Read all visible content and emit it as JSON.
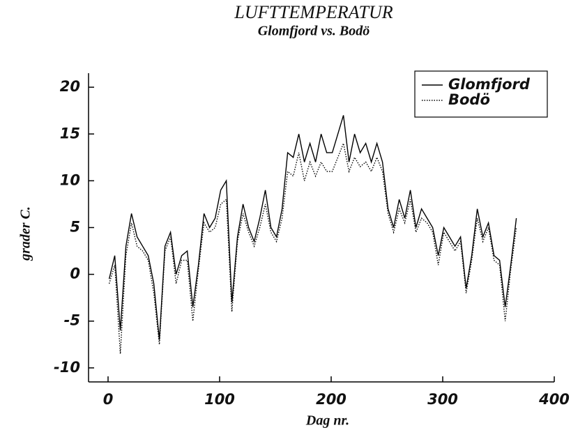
{
  "chart_data": {
    "type": "line",
    "title": "LUFTTEMPERATUR",
    "subtitle": "Glomfjord vs. Bodö",
    "x_label": "Dag nr.",
    "y_label": "grader C.",
    "x": [
      1,
      6,
      11,
      16,
      21,
      26,
      31,
      36,
      41,
      46,
      51,
      56,
      61,
      66,
      71,
      76,
      81,
      86,
      91,
      96,
      101,
      106,
      111,
      116,
      121,
      126,
      131,
      136,
      141,
      146,
      151,
      156,
      161,
      166,
      171,
      176,
      181,
      186,
      191,
      196,
      201,
      206,
      211,
      216,
      221,
      226,
      231,
      236,
      241,
      246,
      251,
      256,
      261,
      266,
      271,
      276,
      281,
      286,
      291,
      296,
      301,
      306,
      311,
      316,
      321,
      326,
      331,
      336,
      341,
      346,
      351,
      356,
      361,
      366
    ],
    "series": [
      {
        "name": "Glomfjord",
        "color": "#000000",
        "linestyle": "solid",
        "values": [
          -0.5,
          2,
          -6,
          3,
          6.5,
          4,
          3,
          2,
          -1,
          -7,
          3,
          4.5,
          0,
          2,
          2.5,
          -3.5,
          1,
          6.5,
          5,
          6,
          9,
          10,
          -3,
          4,
          7.5,
          5,
          3.5,
          6,
          9,
          5,
          4,
          7,
          13,
          12.5,
          15,
          12,
          14,
          12,
          15,
          13,
          13,
          15,
          17,
          12,
          15,
          13,
          14,
          12,
          14,
          12,
          7,
          5,
          8,
          6,
          9,
          5,
          7,
          6,
          5,
          2,
          5,
          4,
          3,
          4,
          -1.5,
          2,
          7,
          4,
          5.5,
          2,
          1.5,
          -3.5,
          1,
          6
        ]
      },
      {
        "name": "Bodö",
        "color": "#000000",
        "linestyle": "dotted",
        "values": [
          -1,
          1,
          -8.5,
          2,
          5.5,
          3,
          2.5,
          1.5,
          -2,
          -7.5,
          2.5,
          4,
          -1,
          1.5,
          1.5,
          -5,
          0.5,
          5.5,
          4.5,
          5,
          7.5,
          8,
          -4,
          3.5,
          6.5,
          4.5,
          3,
          5,
          7.5,
          4.5,
          3.5,
          6,
          11,
          10.5,
          13,
          10,
          12,
          10.5,
          12,
          11,
          11,
          12.5,
          14,
          11,
          12.5,
          11.5,
          12,
          11,
          12.5,
          11,
          6.5,
          4.5,
          7,
          5.5,
          8,
          4.5,
          6,
          5.5,
          4.5,
          1,
          4.5,
          3.5,
          2.5,
          3.5,
          -2,
          1.5,
          6,
          3.5,
          5,
          1.5,
          1,
          -5,
          0.5,
          5
        ]
      }
    ],
    "xlim": [
      -17.5,
      400
    ],
    "ylim": [
      -11.5,
      21.5
    ],
    "xticks": [
      0,
      100,
      200,
      300,
      400
    ],
    "yticks": [
      -10,
      -5,
      0,
      5,
      10,
      15,
      20
    ],
    "legend": "upper right"
  }
}
